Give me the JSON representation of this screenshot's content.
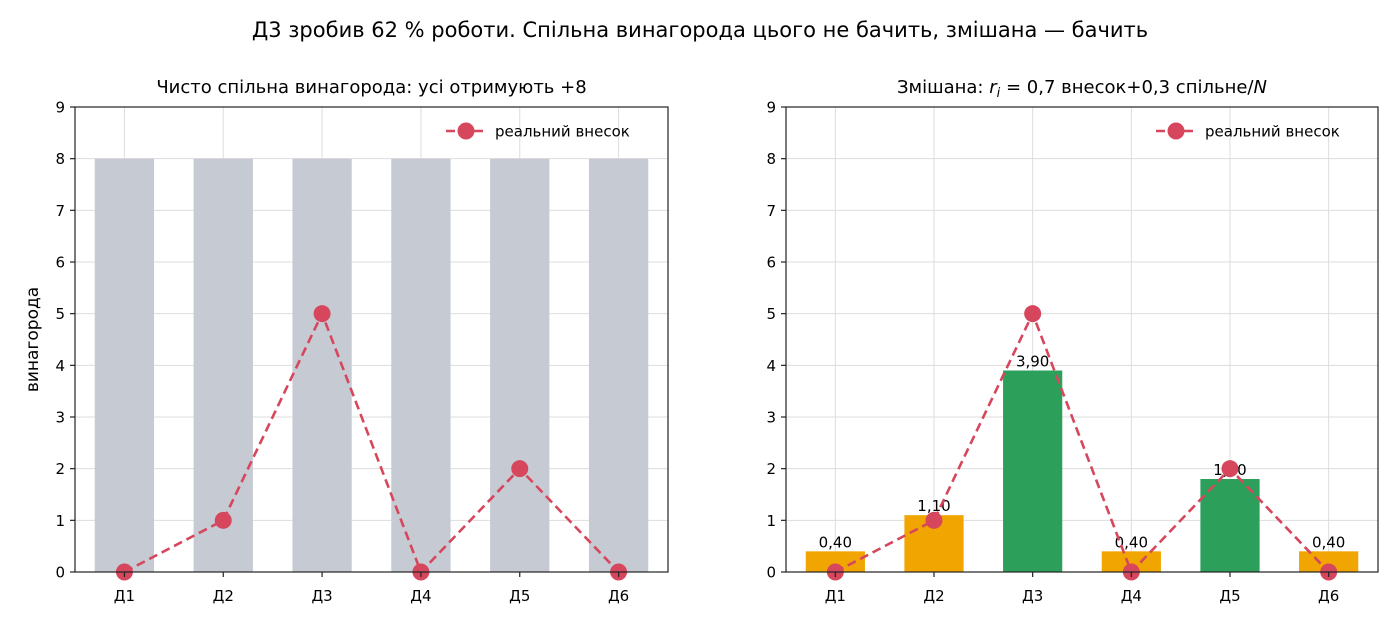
{
  "suptitle": "Д3 зробив 62 % роботи. Спільна винагорода цього не бачить, змішана — бачить",
  "colors": {
    "shared_bar": "#c6cad3",
    "low_bar": "#f0a500",
    "high_bar": "#2ca05a",
    "contribution_line": "#d6475d",
    "grid": "#dddddd"
  },
  "chart_data": [
    {
      "type": "bar",
      "title": "Чисто спільна винагорода: усі отримують +8",
      "ylabel": "винагорода",
      "xlabel": "",
      "categories": [
        "Д1",
        "Д2",
        "Д3",
        "Д4",
        "Д5",
        "Д6"
      ],
      "values": [
        8,
        8,
        8,
        8,
        8,
        8
      ],
      "bar_colors": [
        "#c6cad3",
        "#c6cad3",
        "#c6cad3",
        "#c6cad3",
        "#c6cad3",
        "#c6cad3"
      ],
      "bar_labels": [],
      "line_series": {
        "name": "реальний внесок",
        "values": [
          0,
          1,
          5,
          0,
          2,
          0
        ]
      },
      "ylim": [
        0,
        9
      ],
      "yticks": [
        "0",
        "1",
        "2",
        "3",
        "4",
        "5",
        "6",
        "7",
        "8",
        "9"
      ],
      "grid": true,
      "legend": "top-right"
    },
    {
      "type": "bar",
      "title": "Змішана: r_i = 0,7 внесок+0,3 спільне/N",
      "title_parts": {
        "prefix": "Змішана: ",
        "r": "r",
        "sub": "i",
        "mid": " = 0,7 внесок+0,3 спільне/",
        "N": "N"
      },
      "ylabel": "",
      "xlabel": "",
      "categories": [
        "Д1",
        "Д2",
        "Д3",
        "Д4",
        "Д5",
        "Д6"
      ],
      "values": [
        0.4,
        1.1,
        3.9,
        0.4,
        1.8,
        0.4
      ],
      "bar_colors": [
        "#f0a500",
        "#f0a500",
        "#2ca05a",
        "#f0a500",
        "#2ca05a",
        "#f0a500"
      ],
      "bar_labels": [
        "0,40",
        "1,10",
        "3,90",
        "0,40",
        "1,80",
        "0,40"
      ],
      "line_series": {
        "name": "реальний внесок",
        "values": [
          0,
          1,
          5,
          0,
          2,
          0
        ]
      },
      "ylim": [
        0,
        9
      ],
      "yticks": [
        "0",
        "1",
        "2",
        "3",
        "4",
        "5",
        "6",
        "7",
        "8",
        "9"
      ],
      "grid": true,
      "legend": "top-right"
    }
  ]
}
